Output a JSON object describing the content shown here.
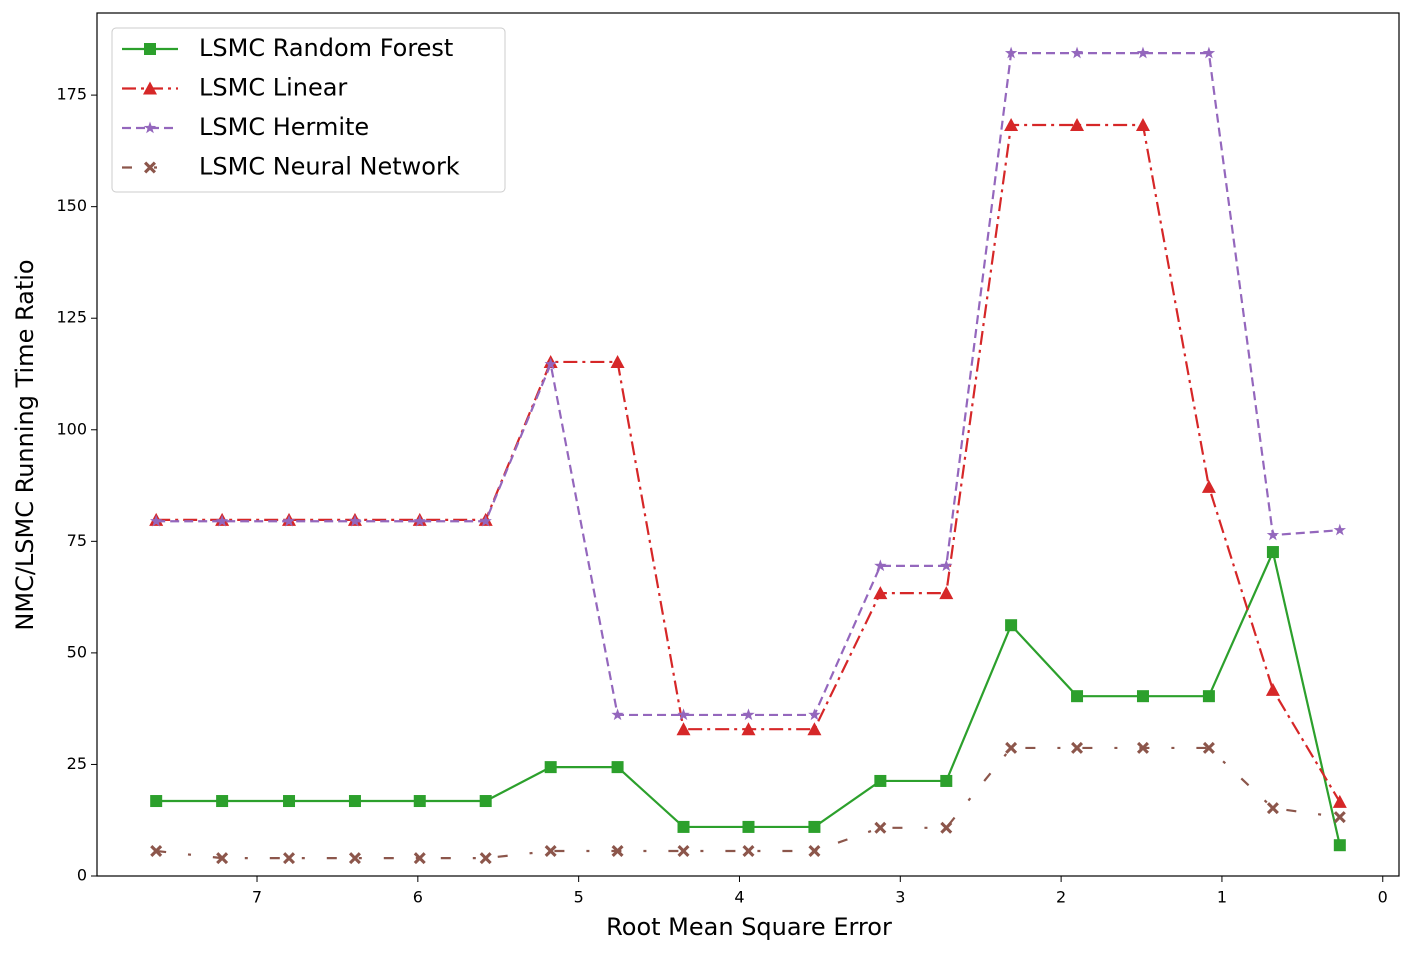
{
  "chart_data": {
    "type": "line",
    "xlabel": "Root Mean Square Error",
    "ylabel": "NMC/LSMC Running Time Ratio",
    "x": [
      7.627,
      7.217,
      6.801,
      6.391,
      5.988,
      5.578,
      5.174,
      4.758,
      4.348,
      3.944,
      3.534,
      3.124,
      2.714,
      2.311,
      1.901,
      1.491,
      1.081,
      0.683,
      0.267
    ],
    "xlim": [
      7.995,
      -0.101
    ],
    "xticks": [
      7,
      6,
      5,
      4,
      3,
      2,
      1,
      0
    ],
    "ylim": [
      0,
      193.4
    ],
    "yticks": [
      0,
      25,
      50,
      75,
      100,
      125,
      150,
      175
    ],
    "legend": "upper-left",
    "series": [
      {
        "name": "LSMC Random Forest",
        "color": "#2ca02c",
        "marker": "square",
        "linestyle": "solid",
        "values": [
          16.8,
          16.8,
          16.8,
          16.8,
          16.8,
          16.8,
          24.4,
          24.4,
          11,
          11,
          11,
          21.3,
          21.3,
          56.2,
          40.3,
          40.3,
          40.3,
          72.6,
          6.9
        ]
      },
      {
        "name": "LSMC Linear",
        "color": "#d62728",
        "marker": "triangle",
        "linestyle": "dashdot",
        "values": [
          79.8,
          79.8,
          79.8,
          79.8,
          79.8,
          79.8,
          115.2,
          115.2,
          32.9,
          32.9,
          32.9,
          63.4,
          63.4,
          168.3,
          168.3,
          168.3,
          87.2,
          41.7,
          16.6
        ]
      },
      {
        "name": "LSMC Hermite",
        "color": "#9467bd",
        "marker": "star",
        "linestyle": "dashed",
        "values": [
          79.5,
          79.5,
          79.5,
          79.5,
          79.5,
          79.5,
          114.7,
          36.1,
          36.1,
          36.1,
          36.1,
          69.5,
          69.5,
          184.4,
          184.4,
          184.4,
          184.4,
          76.4,
          77.5
        ]
      },
      {
        "name": "LSMC Neural Network",
        "color": "#8c564b",
        "marker": "x",
        "linestyle": "loosedashdot",
        "values": [
          5.6,
          4.0,
          4.0,
          4.0,
          4.0,
          4.0,
          5.6,
          5.6,
          5.6,
          5.6,
          5.6,
          10.8,
          10.8,
          28.7,
          28.7,
          28.7,
          28.7,
          15.2,
          13.2
        ]
      }
    ]
  }
}
